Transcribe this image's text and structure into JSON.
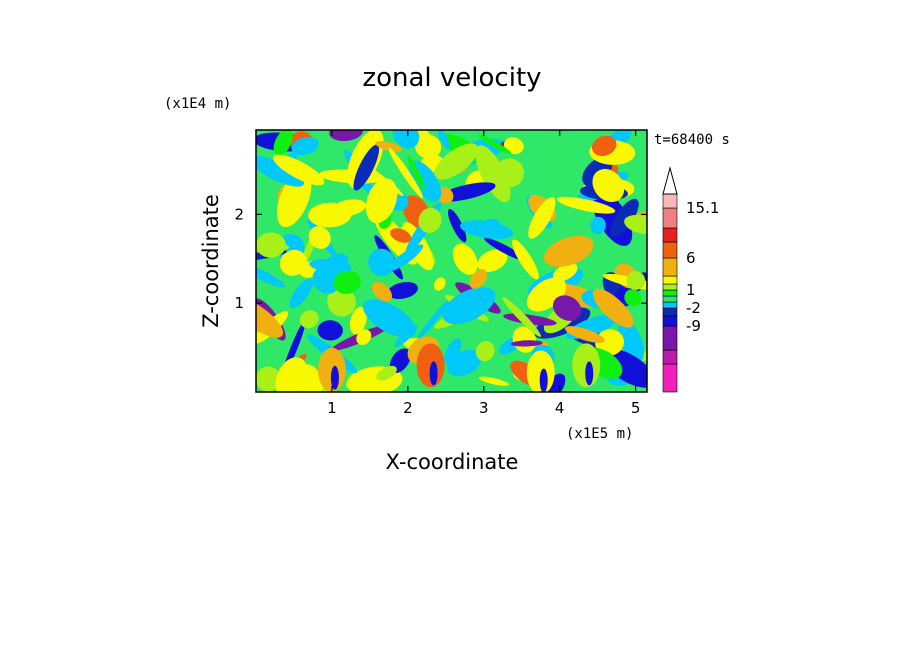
{
  "chart_data": {
    "type": "heatmap",
    "title": "zonal velocity",
    "xlabel": "X-coordinate",
    "ylabel": "Z-coordinate",
    "x_scale_label": "(x1E5 m)",
    "y_scale_label": "(x1E4 m)",
    "time_label": "t=68400 s",
    "xlim": [
      0,
      5.15
    ],
    "ylim": [
      0,
      2.95
    ],
    "x_ticks": [
      1,
      2,
      3,
      4,
      5
    ],
    "y_ticks": [
      1,
      2
    ],
    "x_tick_labels": [
      "1",
      "2",
      "3",
      "4",
      "5"
    ],
    "y_tick_labels": [
      "1",
      "2"
    ],
    "colorbar": {
      "levels": [
        -15,
        -12,
        -9,
        -6,
        -2,
        -1,
        0,
        1,
        2,
        4,
        6,
        9,
        12,
        15.1
      ],
      "colors": [
        "#f020b8",
        "#b81ca8",
        "#7818a8",
        "#1010d8",
        "#0a2ab8",
        "#00c8f8",
        "#30e868",
        "#10f010",
        "#a8f018",
        "#f8f800",
        "#f0b010",
        "#f06010",
        "#e82020",
        "#f08080",
        "#f8b8b8"
      ],
      "labels": [
        "15.1",
        "6",
        "1",
        "-2",
        "-9"
      ],
      "label_values": [
        15.1,
        6,
        1,
        -2,
        -9
      ],
      "extend": "max"
    },
    "background_color": "#30e868"
  }
}
